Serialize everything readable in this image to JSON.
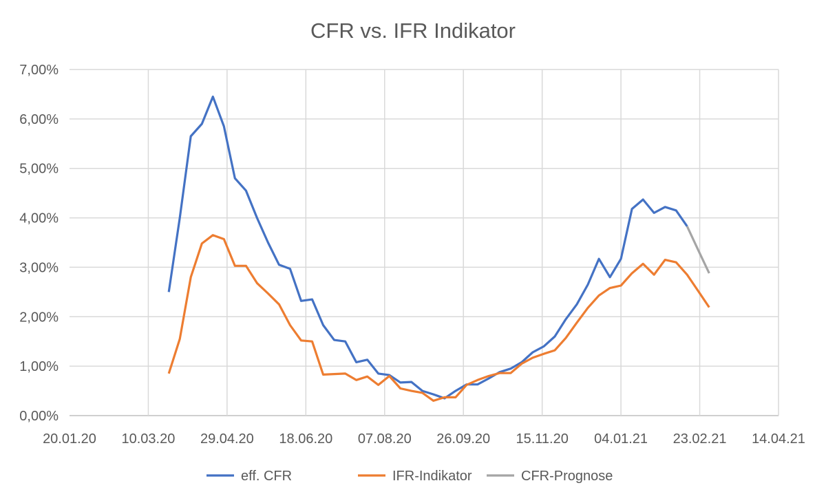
{
  "chart_data": {
    "type": "line",
    "title": "CFR vs. IFR Indikator",
    "xlabel": "",
    "ylabel": "",
    "x_unit": "days since 20.01.20",
    "xlim": [
      0,
      450
    ],
    "ylim": [
      0,
      7
    ],
    "x_ticks": [
      "20.01.20",
      "10.03.20",
      "29.04.20",
      "18.06.20",
      "07.08.20",
      "26.09.20",
      "15.11.20",
      "04.01.21",
      "23.02.21",
      "14.04.21"
    ],
    "y_ticks": [
      "0,00%",
      "1,00%",
      "2,00%",
      "3,00%",
      "4,00%",
      "5,00%",
      "6,00%",
      "7,00%"
    ],
    "grid": true,
    "legend_position": "bottom",
    "series": [
      {
        "name": "eff. CFR",
        "color": "#4472c4",
        "x_start": 63,
        "x_step": 7,
        "values": [
          2.5,
          4.0,
          5.65,
          5.9,
          6.45,
          5.85,
          4.8,
          4.55,
          4.0,
          3.5,
          3.05,
          2.97,
          2.32,
          2.35,
          1.83,
          1.53,
          1.5,
          1.08,
          1.13,
          0.85,
          0.82,
          0.67,
          0.68,
          0.5,
          0.43,
          0.35,
          0.5,
          0.63,
          0.63,
          0.75,
          0.88,
          0.95,
          1.08,
          1.28,
          1.4,
          1.6,
          1.95,
          2.25,
          2.65,
          3.17,
          2.8,
          3.17,
          4.18,
          4.37,
          4.1,
          4.22,
          4.15,
          3.83
        ]
      },
      {
        "name": "IFR-Indikator",
        "color": "#ed7d31",
        "x_start": 63,
        "x_step": 7,
        "values": [
          0.85,
          1.55,
          2.8,
          3.48,
          3.65,
          3.57,
          3.03,
          3.03,
          2.68,
          2.47,
          2.25,
          1.83,
          1.52,
          1.5,
          0.83,
          0.84,
          0.85,
          0.72,
          0.79,
          0.62,
          0.8,
          0.55,
          0.5,
          0.46,
          0.3,
          0.37,
          0.37,
          0.62,
          0.72,
          0.8,
          0.86,
          0.86,
          1.05,
          1.17,
          1.25,
          1.32,
          1.57,
          1.88,
          2.18,
          2.43,
          2.58,
          2.63,
          2.88,
          3.07,
          2.85,
          3.15,
          3.1,
          2.85,
          2.52,
          2.19
        ]
      },
      {
        "name": "CFR-Prognose",
        "color": "#a5a5a5",
        "x_start": 392,
        "x_step": 7,
        "values": [
          3.83,
          3.35,
          2.88
        ]
      }
    ]
  }
}
